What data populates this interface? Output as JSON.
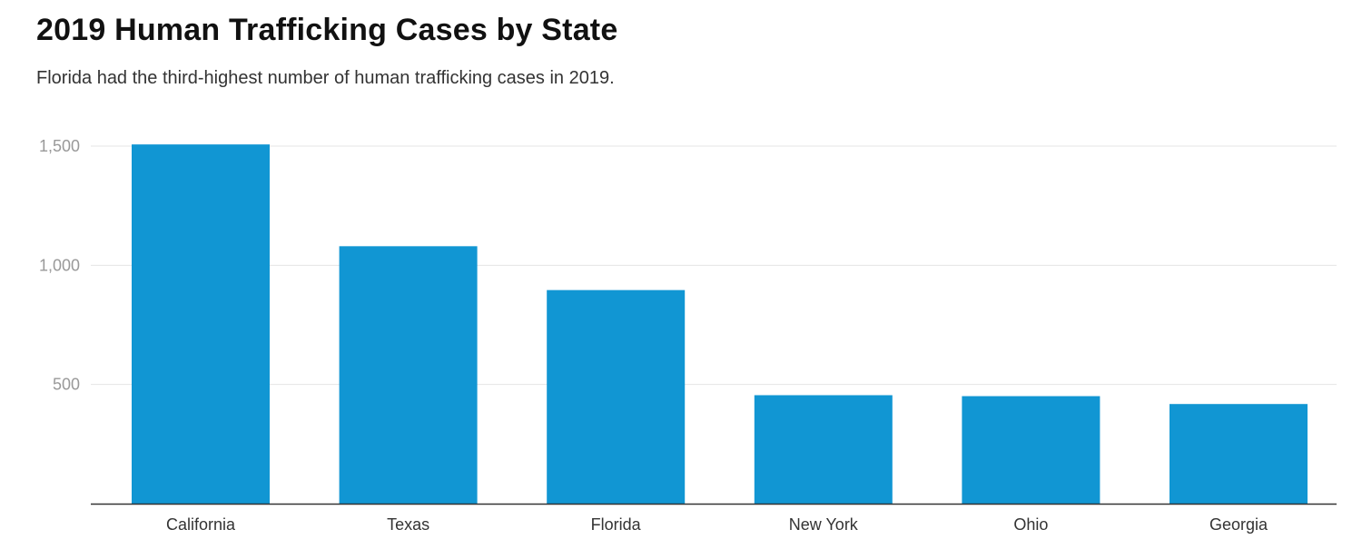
{
  "chart_data": {
    "type": "bar",
    "title": "2019 Human Trafficking Cases by State",
    "subtitle": "Florida had the third-highest number of human trafficking cases in 2019.",
    "categories": [
      "California",
      "Texas",
      "Florida",
      "New York",
      "Ohio",
      "Georgia"
    ],
    "values": [
      1507,
      1080,
      896,
      455,
      451,
      418
    ],
    "xlabel": "",
    "ylabel": "",
    "ylim": [
      0,
      1500
    ],
    "yticks": [
      500,
      1000,
      1500
    ],
    "ytick_labels": [
      "500",
      "1,000",
      "1,500"
    ],
    "bar_color": "#1196d3",
    "grid": true
  }
}
